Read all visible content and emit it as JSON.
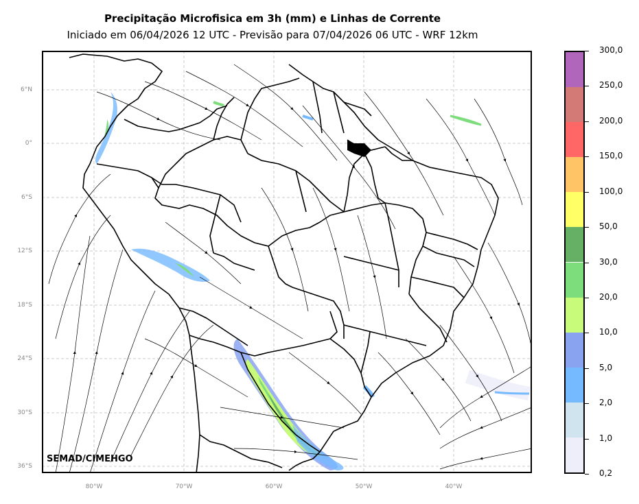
{
  "title": {
    "line1": "Precipitação Microfisica em 3h (mm) e Linhas de Corrente",
    "line2": "Iniciado em 06/04/2026 12 UTC - Previsão para 07/04/2026 06 UTC - WRF 12km"
  },
  "credit": "SEMAD/CIMEHGO",
  "lat_labels": [
    "6°N",
    "0°",
    "6°S",
    "12°S",
    "18°S",
    "24°S",
    "30°S",
    "36°S"
  ],
  "lon_labels": [
    "80°W",
    "70°W",
    "60°W",
    "50°W",
    "40°W"
  ],
  "colorbar": {
    "labels": [
      "0,2",
      "1,0",
      "2,0",
      "5,0",
      "10,0",
      "20,0",
      "30,0",
      "50,0",
      "100,0",
      "150,0",
      "200,0",
      "250,0",
      "300,0"
    ],
    "colors": [
      "#eeeefa",
      "#cfe4ef",
      "#75b9ff",
      "#8aa3f1",
      "#c9fb7a",
      "#7ddc7c",
      "#66b066",
      "#ffff66",
      "#ffc466",
      "#ff6666",
      "#d37a76",
      "#b066bb"
    ]
  },
  "map": {
    "gridline_color": "#bbbbbb",
    "border_color": "#000000"
  }
}
